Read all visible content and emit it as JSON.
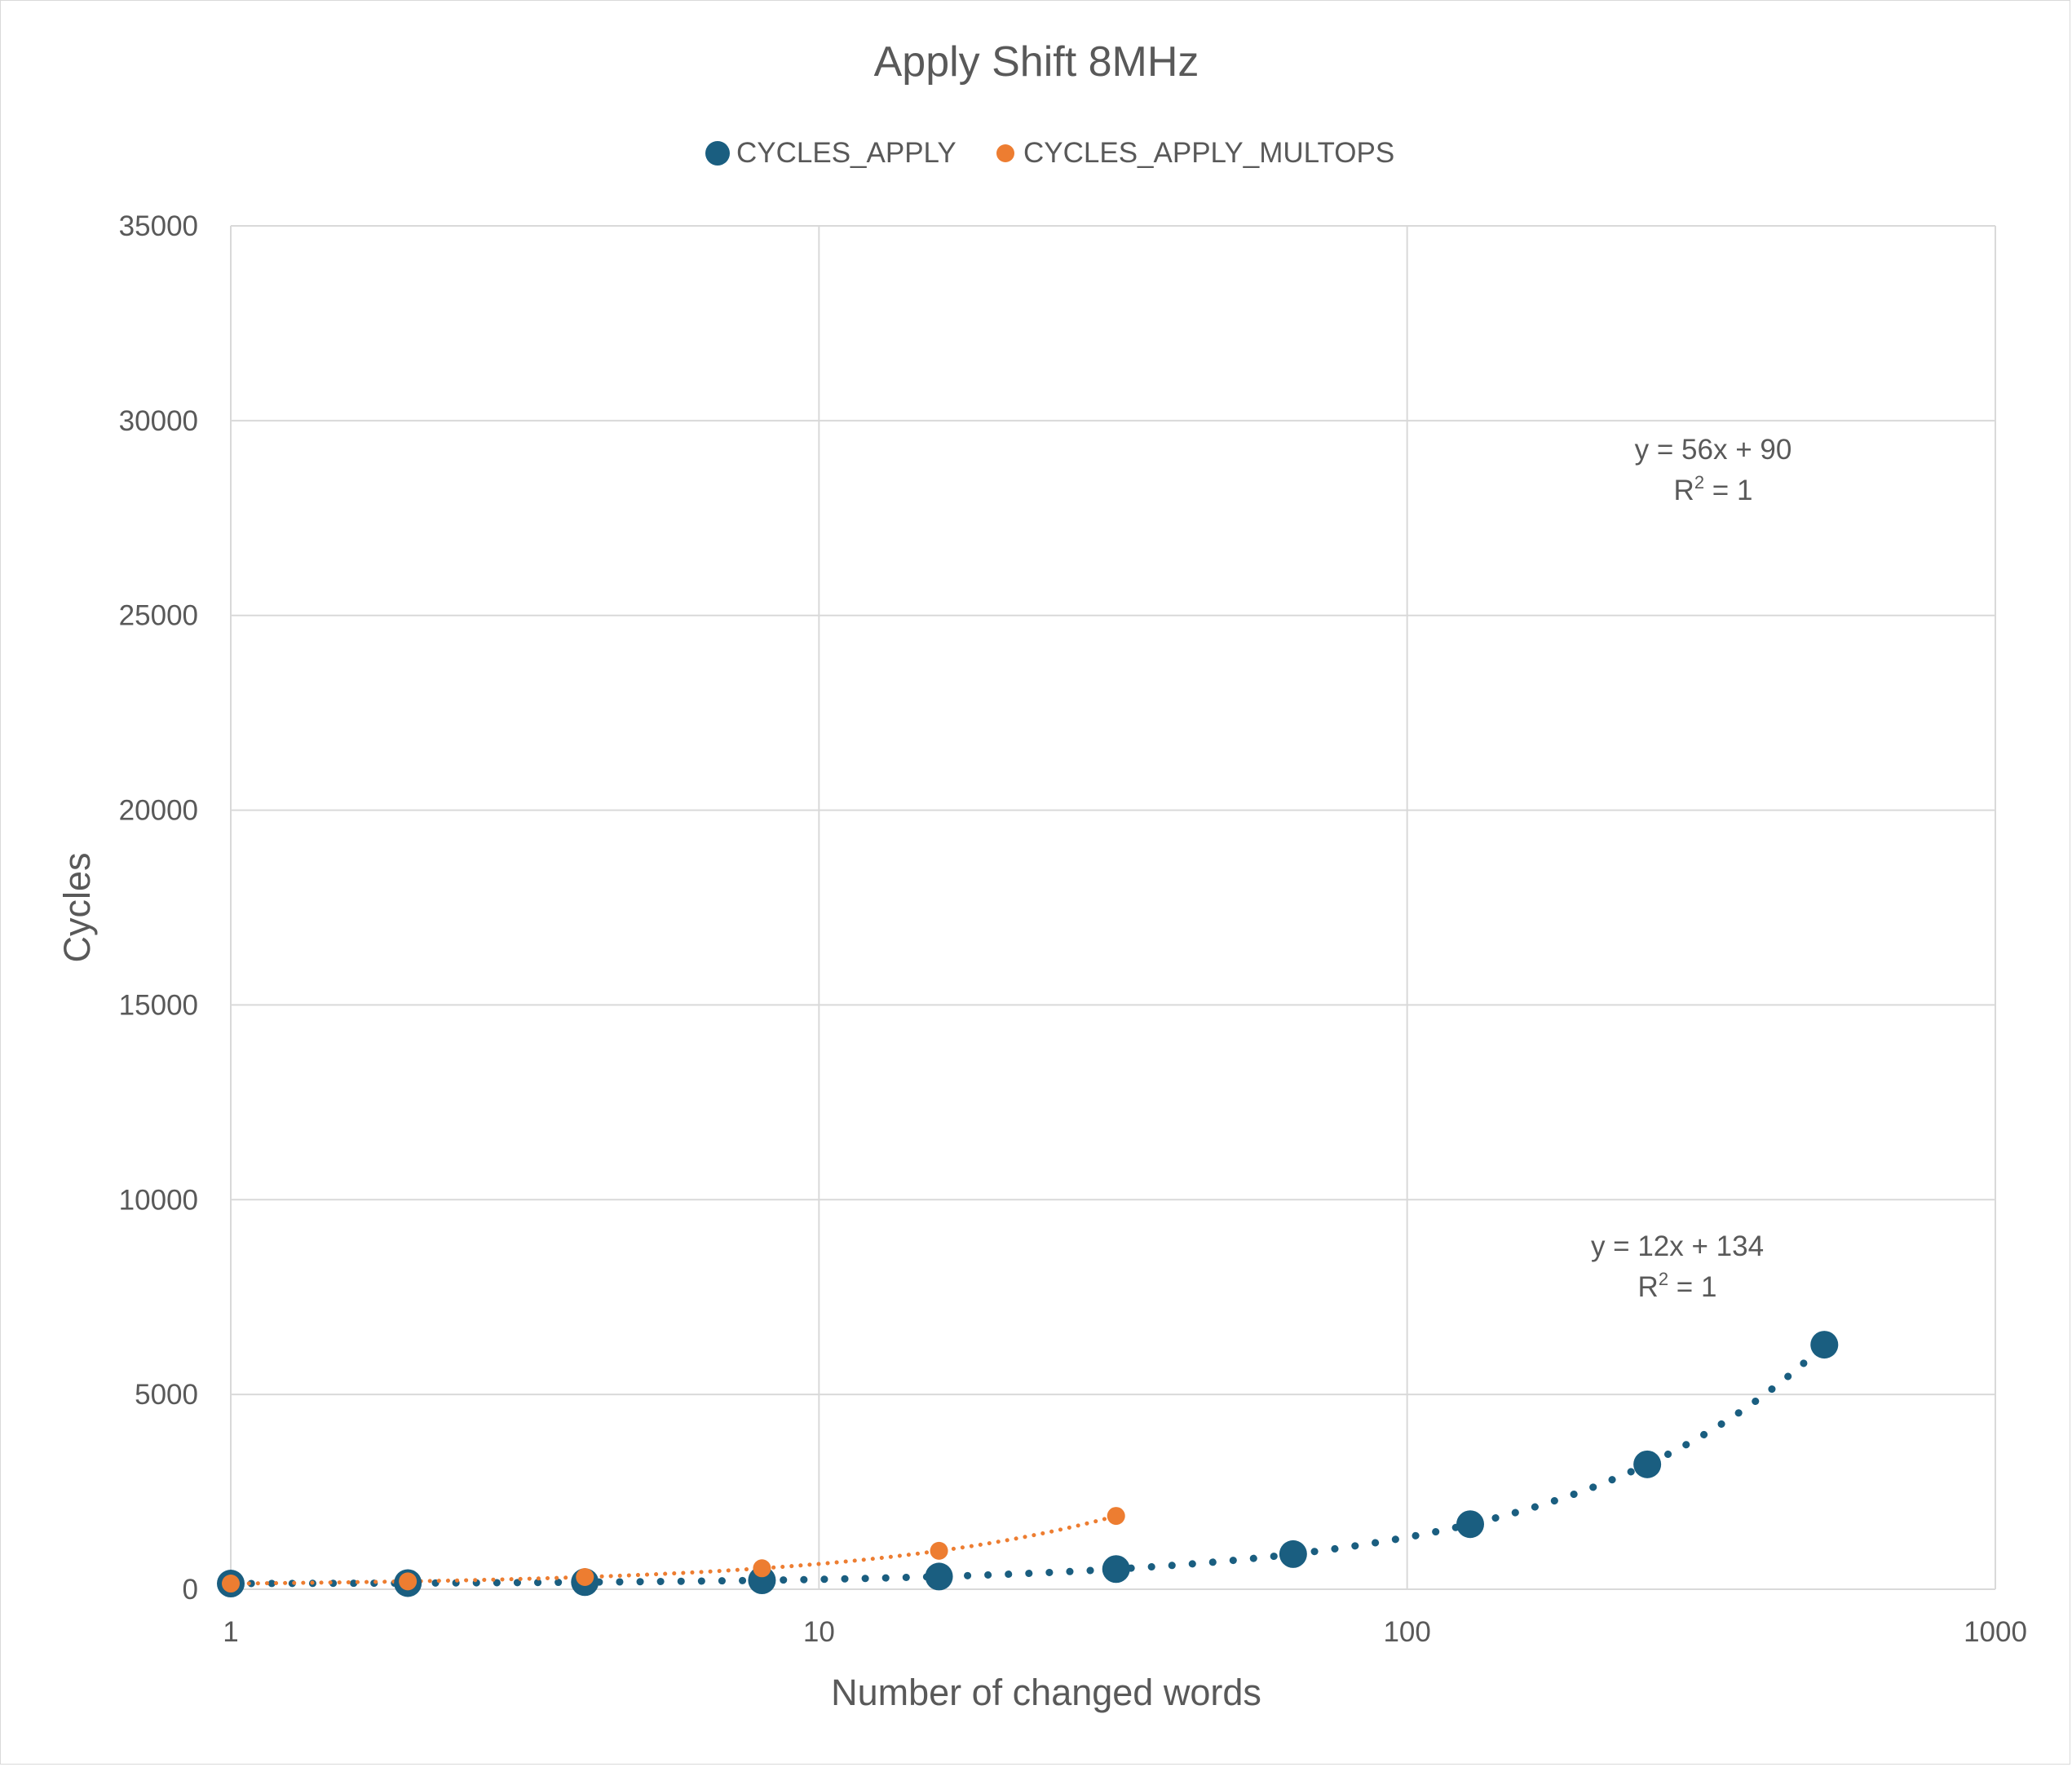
{
  "chart_data": {
    "type": "scatter",
    "title": "Apply Shift 8MHz",
    "xlabel": "Number of changed words",
    "ylabel": "Cycles",
    "x_scale": "log",
    "xlim": [
      1,
      1000
    ],
    "ylim": [
      0,
      35000
    ],
    "x_ticks": [
      "1",
      "10",
      "100",
      "1000"
    ],
    "y_ticks": [
      "0",
      "5000",
      "10000",
      "15000",
      "20000",
      "25000",
      "30000",
      "35000"
    ],
    "grid": true,
    "legend_position": "top",
    "series": [
      {
        "name": "CYCLES_APPLY",
        "color": "#1a5e80",
        "x": [
          1,
          2,
          4,
          8,
          16,
          32,
          64,
          128,
          256,
          512
        ],
        "y": [
          146,
          158,
          182,
          230,
          326,
          518,
          902,
          1670,
          3206,
          6278
        ],
        "trendline": {
          "type": "linear",
          "slope": 12,
          "intercept": 134,
          "equation": "y = 12x + 134",
          "r2_prefix": "R",
          "r2_exp": "2",
          "r2_suffix": " = 1"
        }
      },
      {
        "name": "CYCLES_APPLY_MULTOPS",
        "color": "#ed7d31",
        "x": [
          1,
          2,
          4,
          8,
          16,
          32
        ],
        "y": [
          146,
          202,
          314,
          538,
          986,
          1882
        ],
        "trendline": {
          "type": "linear",
          "slope": 56,
          "intercept": 90,
          "equation": "y = 56x + 90",
          "r2_prefix": "R",
          "r2_exp": "2",
          "r2_suffix": " = 1"
        }
      }
    ]
  }
}
